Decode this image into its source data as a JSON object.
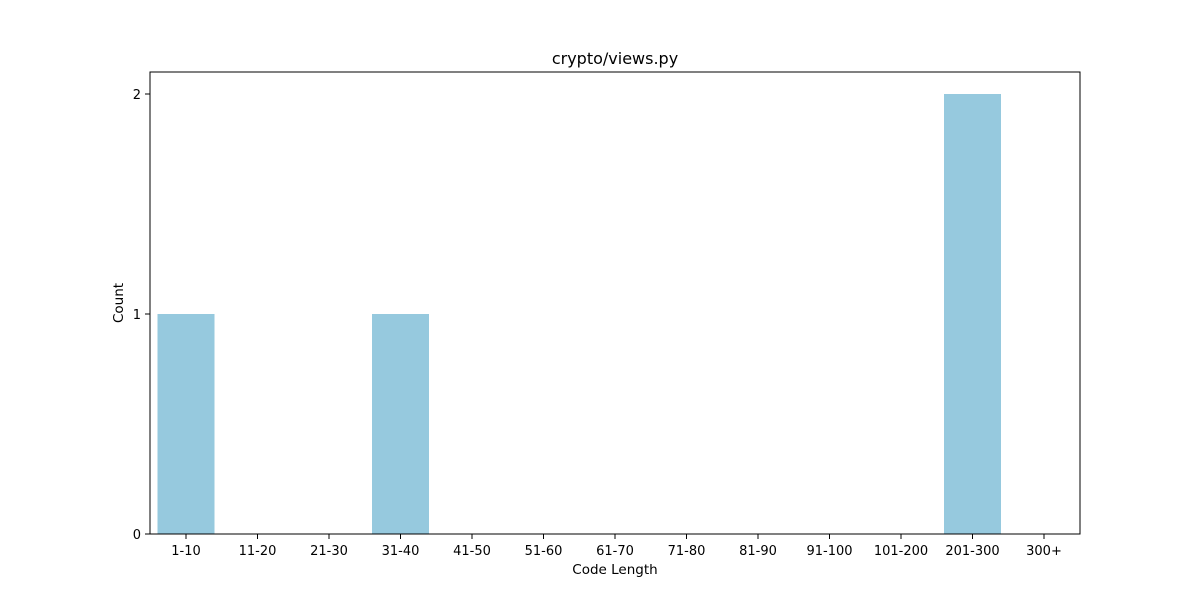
{
  "chart_data": {
    "type": "bar",
    "title": "crypto/views.py",
    "xlabel": "Code Length",
    "ylabel": "Count",
    "categories": [
      "1-10",
      "11-20",
      "21-30",
      "31-40",
      "41-50",
      "51-60",
      "61-70",
      "71-80",
      "81-90",
      "91-100",
      "101-200",
      "201-300",
      "300+"
    ],
    "values": [
      1,
      0,
      0,
      1,
      0,
      0,
      0,
      0,
      0,
      0,
      0,
      2,
      0
    ],
    "ylim": [
      0,
      2.1
    ],
    "yticks": [
      0,
      1,
      2
    ],
    "grid": false,
    "legend": "none",
    "bar_color": "#96c9de"
  }
}
